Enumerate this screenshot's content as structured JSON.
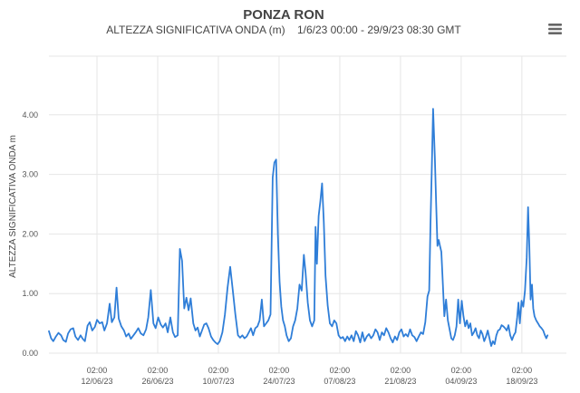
{
  "chart_data": {
    "type": "line",
    "title": "PONZA RON",
    "subtitle": "ALTEZZA SIGNIFICATIVA ONDA (m)    1/6/23 00:00 - 29/9/23 08:30 GMT",
    "ylabel": "ALTEZZA SIGNIFICATIVA ONDA m",
    "xlabel": "",
    "xlim": [
      0,
      119.35
    ],
    "ylim": [
      0,
      4.0
    ],
    "y_ticks": [
      "0.00",
      "1.00",
      "2.00",
      "3.00",
      "4.00"
    ],
    "x_ticks": [
      {
        "day": 11.08,
        "time": "02:00",
        "date": "12/06/23"
      },
      {
        "day": 25.08,
        "time": "02:00",
        "date": "26/06/23"
      },
      {
        "day": 39.08,
        "time": "02:00",
        "date": "10/07/23"
      },
      {
        "day": 53.08,
        "time": "02:00",
        "date": "24/07/23"
      },
      {
        "day": 67.08,
        "time": "02:00",
        "date": "07/08/23"
      },
      {
        "day": 81.08,
        "time": "02:00",
        "date": "21/08/23"
      },
      {
        "day": 95.08,
        "time": "02:00",
        "date": "04/09/23"
      },
      {
        "day": 109.08,
        "time": "02:00",
        "date": "18/09/23"
      }
    ],
    "grid": true,
    "legend": "none",
    "series": [
      {
        "color": "#2f7ed8",
        "points": [
          [
            0.0,
            0.37
          ],
          [
            0.5,
            0.25
          ],
          [
            1.0,
            0.2
          ],
          [
            1.6,
            0.28
          ],
          [
            2.2,
            0.34
          ],
          [
            2.8,
            0.3
          ],
          [
            3.3,
            0.22
          ],
          [
            3.9,
            0.19
          ],
          [
            4.4,
            0.33
          ],
          [
            5.0,
            0.4
          ],
          [
            5.6,
            0.42
          ],
          [
            6.1,
            0.28
          ],
          [
            6.7,
            0.22
          ],
          [
            7.3,
            0.3
          ],
          [
            7.8,
            0.24
          ],
          [
            8.3,
            0.2
          ],
          [
            8.9,
            0.46
          ],
          [
            9.4,
            0.52
          ],
          [
            10.0,
            0.38
          ],
          [
            10.6,
            0.44
          ],
          [
            11.1,
            0.56
          ],
          [
            11.7,
            0.5
          ],
          [
            12.3,
            0.52
          ],
          [
            12.8,
            0.38
          ],
          [
            13.4,
            0.5
          ],
          [
            14.0,
            0.83
          ],
          [
            14.5,
            0.52
          ],
          [
            15.1,
            0.6
          ],
          [
            15.6,
            1.1
          ],
          [
            16.1,
            0.58
          ],
          [
            16.7,
            0.45
          ],
          [
            17.3,
            0.38
          ],
          [
            17.8,
            0.28
          ],
          [
            18.4,
            0.33
          ],
          [
            18.9,
            0.24
          ],
          [
            19.5,
            0.3
          ],
          [
            20.1,
            0.36
          ],
          [
            20.6,
            0.42
          ],
          [
            21.2,
            0.33
          ],
          [
            21.8,
            0.3
          ],
          [
            22.4,
            0.4
          ],
          [
            22.9,
            0.6
          ],
          [
            23.5,
            1.06
          ],
          [
            24.1,
            0.5
          ],
          [
            24.6,
            0.42
          ],
          [
            25.2,
            0.6
          ],
          [
            25.8,
            0.48
          ],
          [
            26.3,
            0.43
          ],
          [
            26.9,
            0.5
          ],
          [
            27.4,
            0.35
          ],
          [
            28.0,
            0.6
          ],
          [
            28.6,
            0.35
          ],
          [
            29.1,
            0.27
          ],
          [
            29.7,
            0.3
          ],
          [
            30.2,
            1.75
          ],
          [
            30.7,
            1.55
          ],
          [
            31.2,
            0.75
          ],
          [
            31.7,
            0.93
          ],
          [
            32.2,
            0.72
          ],
          [
            32.7,
            0.92
          ],
          [
            33.3,
            0.5
          ],
          [
            33.8,
            0.38
          ],
          [
            34.3,
            0.43
          ],
          [
            34.8,
            0.28
          ],
          [
            35.3,
            0.38
          ],
          [
            35.8,
            0.48
          ],
          [
            36.3,
            0.5
          ],
          [
            36.8,
            0.42
          ],
          [
            37.4,
            0.28
          ],
          [
            37.9,
            0.22
          ],
          [
            38.4,
            0.18
          ],
          [
            38.9,
            0.15
          ],
          [
            39.4,
            0.2
          ],
          [
            40.0,
            0.35
          ],
          [
            40.6,
            0.65
          ],
          [
            41.2,
            1.1
          ],
          [
            41.8,
            1.45
          ],
          [
            42.4,
            1.05
          ],
          [
            43.0,
            0.65
          ],
          [
            43.6,
            0.3
          ],
          [
            44.1,
            0.26
          ],
          [
            44.6,
            0.3
          ],
          [
            45.1,
            0.25
          ],
          [
            45.6,
            0.28
          ],
          [
            46.1,
            0.35
          ],
          [
            46.6,
            0.42
          ],
          [
            47.1,
            0.3
          ],
          [
            47.6,
            0.42
          ],
          [
            48.1,
            0.45
          ],
          [
            48.6,
            0.55
          ],
          [
            49.1,
            0.9
          ],
          [
            49.6,
            0.45
          ],
          [
            50.1,
            0.5
          ],
          [
            50.6,
            0.55
          ],
          [
            51.1,
            0.65
          ],
          [
            51.6,
            2.95
          ],
          [
            52.0,
            3.2
          ],
          [
            52.4,
            3.25
          ],
          [
            52.8,
            2.0
          ],
          [
            53.2,
            1.2
          ],
          [
            53.6,
            0.78
          ],
          [
            54.0,
            0.55
          ],
          [
            54.4,
            0.45
          ],
          [
            54.8,
            0.3
          ],
          [
            55.3,
            0.2
          ],
          [
            55.8,
            0.25
          ],
          [
            56.3,
            0.45
          ],
          [
            56.8,
            0.55
          ],
          [
            57.3,
            0.75
          ],
          [
            57.8,
            1.15
          ],
          [
            58.3,
            1.05
          ],
          [
            58.8,
            1.65
          ],
          [
            59.2,
            1.35
          ],
          [
            59.7,
            0.85
          ],
          [
            60.2,
            0.55
          ],
          [
            60.7,
            0.45
          ],
          [
            61.2,
            0.55
          ],
          [
            61.5,
            2.12
          ],
          [
            61.8,
            1.5
          ],
          [
            62.2,
            2.3
          ],
          [
            62.6,
            2.55
          ],
          [
            63.0,
            2.85
          ],
          [
            63.4,
            2.2
          ],
          [
            63.8,
            1.3
          ],
          [
            64.3,
            0.8
          ],
          [
            64.8,
            0.5
          ],
          [
            65.3,
            0.45
          ],
          [
            65.8,
            0.55
          ],
          [
            66.3,
            0.5
          ],
          [
            66.8,
            0.3
          ],
          [
            67.3,
            0.25
          ],
          [
            67.8,
            0.27
          ],
          [
            68.3,
            0.2
          ],
          [
            68.8,
            0.28
          ],
          [
            69.3,
            0.22
          ],
          [
            69.8,
            0.3
          ],
          [
            70.3,
            0.2
          ],
          [
            70.8,
            0.37
          ],
          [
            71.3,
            0.3
          ],
          [
            71.8,
            0.18
          ],
          [
            72.3,
            0.35
          ],
          [
            72.8,
            0.2
          ],
          [
            73.3,
            0.28
          ],
          [
            73.8,
            0.32
          ],
          [
            74.3,
            0.25
          ],
          [
            74.8,
            0.3
          ],
          [
            75.3,
            0.4
          ],
          [
            75.8,
            0.35
          ],
          [
            76.3,
            0.22
          ],
          [
            76.8,
            0.35
          ],
          [
            77.3,
            0.3
          ],
          [
            77.8,
            0.42
          ],
          [
            78.3,
            0.35
          ],
          [
            78.8,
            0.25
          ],
          [
            79.3,
            0.18
          ],
          [
            79.8,
            0.28
          ],
          [
            80.3,
            0.22
          ],
          [
            80.8,
            0.35
          ],
          [
            81.3,
            0.4
          ],
          [
            81.8,
            0.28
          ],
          [
            82.3,
            0.32
          ],
          [
            82.8,
            0.28
          ],
          [
            83.3,
            0.4
          ],
          [
            83.8,
            0.3
          ],
          [
            84.3,
            0.27
          ],
          [
            84.8,
            0.2
          ],
          [
            85.3,
            0.28
          ],
          [
            85.8,
            0.35
          ],
          [
            86.3,
            0.32
          ],
          [
            86.8,
            0.52
          ],
          [
            87.3,
            0.95
          ],
          [
            87.7,
            1.05
          ],
          [
            88.0,
            2.15
          ],
          [
            88.3,
            3.05
          ],
          [
            88.6,
            4.1
          ],
          [
            89.0,
            3.3
          ],
          [
            89.3,
            2.55
          ],
          [
            89.6,
            1.8
          ],
          [
            89.9,
            1.9
          ],
          [
            90.2,
            1.8
          ],
          [
            90.5,
            1.7
          ],
          [
            90.8,
            1.25
          ],
          [
            91.2,
            0.62
          ],
          [
            91.6,
            0.9
          ],
          [
            92.0,
            0.55
          ],
          [
            92.4,
            0.4
          ],
          [
            92.8,
            0.25
          ],
          [
            93.2,
            0.22
          ],
          [
            93.6,
            0.3
          ],
          [
            94.0,
            0.45
          ],
          [
            94.4,
            0.9
          ],
          [
            94.8,
            0.5
          ],
          [
            95.2,
            0.88
          ],
          [
            95.6,
            0.62
          ],
          [
            96.0,
            0.45
          ],
          [
            96.4,
            0.55
          ],
          [
            96.8,
            0.42
          ],
          [
            97.2,
            0.5
          ],
          [
            97.6,
            0.3
          ],
          [
            98.0,
            0.35
          ],
          [
            98.4,
            0.42
          ],
          [
            98.8,
            0.3
          ],
          [
            99.2,
            0.25
          ],
          [
            99.6,
            0.38
          ],
          [
            100.0,
            0.32
          ],
          [
            100.4,
            0.2
          ],
          [
            100.8,
            0.28
          ],
          [
            101.2,
            0.38
          ],
          [
            101.6,
            0.25
          ],
          [
            102.0,
            0.12
          ],
          [
            102.4,
            0.2
          ],
          [
            102.8,
            0.15
          ],
          [
            103.2,
            0.3
          ],
          [
            103.6,
            0.38
          ],
          [
            104.0,
            0.4
          ],
          [
            104.4,
            0.47
          ],
          [
            104.8,
            0.45
          ],
          [
            105.2,
            0.42
          ],
          [
            105.6,
            0.38
          ],
          [
            106.0,
            0.47
          ],
          [
            106.4,
            0.3
          ],
          [
            106.8,
            0.22
          ],
          [
            107.2,
            0.3
          ],
          [
            107.6,
            0.35
          ],
          [
            108.0,
            0.6
          ],
          [
            108.3,
            0.85
          ],
          [
            108.6,
            0.5
          ],
          [
            109.0,
            0.88
          ],
          [
            109.4,
            0.78
          ],
          [
            109.8,
            1.05
          ],
          [
            110.2,
            1.6
          ],
          [
            110.5,
            2.45
          ],
          [
            110.8,
            1.8
          ],
          [
            111.1,
            0.9
          ],
          [
            111.4,
            1.15
          ],
          [
            111.7,
            0.75
          ],
          [
            112.0,
            0.62
          ],
          [
            112.4,
            0.55
          ],
          [
            112.8,
            0.5
          ],
          [
            113.2,
            0.45
          ],
          [
            113.6,
            0.42
          ],
          [
            114.0,
            0.38
          ],
          [
            114.4,
            0.3
          ],
          [
            114.7,
            0.25
          ],
          [
            115.0,
            0.3
          ]
        ]
      }
    ]
  },
  "ui": {
    "menu_icon": "hamburger-menu-icon"
  }
}
